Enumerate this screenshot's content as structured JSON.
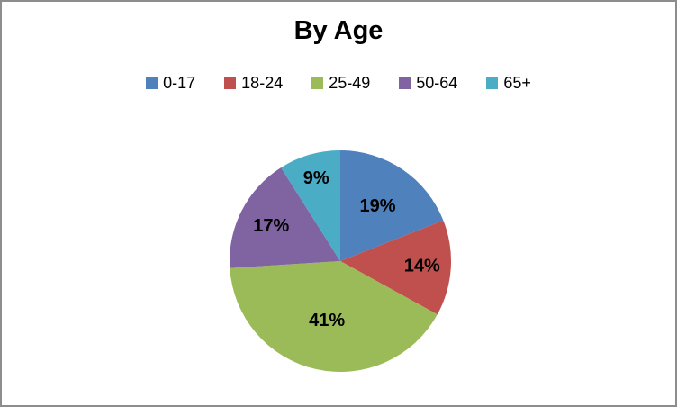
{
  "chart": {
    "title": "By Age"
  },
  "chart_data": {
    "type": "pie",
    "title": "By Age",
    "categories": [
      "0-17",
      "18-24",
      "25-49",
      "50-64",
      "65+"
    ],
    "values": [
      19,
      14,
      41,
      17,
      9
    ],
    "data_labels": [
      "19%",
      "14%",
      "41%",
      "17%",
      "9%"
    ],
    "colors": [
      "#4F81BD",
      "#C0504D",
      "#9BBB59",
      "#8064A2",
      "#4BACC6"
    ],
    "legend_position": "top",
    "legend_entries": [
      "0-17",
      "18-24",
      "25-49",
      "50-64",
      "65+"
    ],
    "start_angle_deg": 0,
    "direction": "clockwise",
    "label_color": "#000000"
  },
  "frame": {
    "border_color": "#8d8d8d",
    "background": "#ffffff"
  }
}
